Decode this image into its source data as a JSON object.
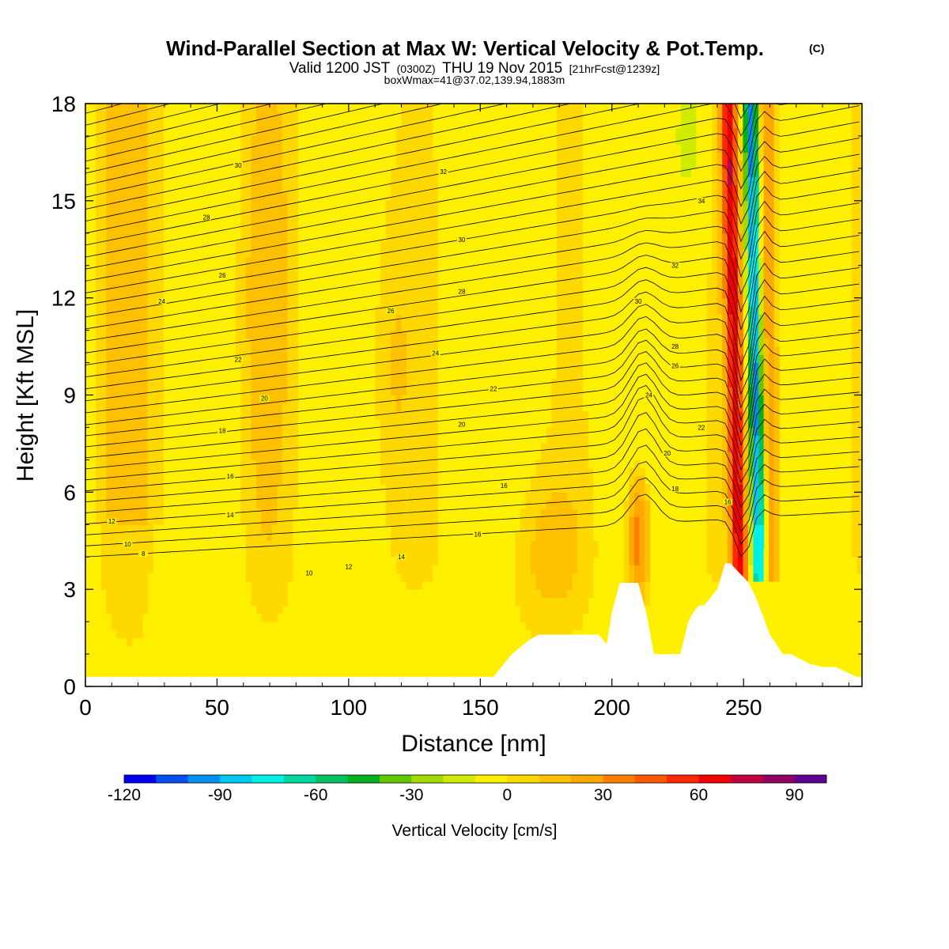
{
  "title": {
    "main": "Wind-Parallel Section at Max W: Vertical Velocity & Pot.Temp.",
    "copyright": "(C)",
    "valid_prefix": "Valid 1200 JST",
    "valid_utc": "(0300Z)",
    "valid_date": "THU 19 Nov 2015",
    "forecast": "[21hrFcst@1239z]",
    "box": "boxWmax=41@37.02,139.94,1883m"
  },
  "chart_data": {
    "type": "heatmap",
    "xlabel": "Distance [nm]",
    "ylabel": "Height [Kft MSL]",
    "xlim": [
      0,
      295
    ],
    "ylim": [
      0,
      18
    ],
    "xticks": [
      "0",
      "50",
      "100",
      "150",
      "200",
      "250"
    ],
    "yticks": [
      "0",
      "3",
      "6",
      "9",
      "12",
      "15",
      "18"
    ],
    "colorbar": {
      "label": "Vertical Velocity [cm/s]",
      "range": [
        -120,
        100
      ],
      "step": 10,
      "tick_labels": [
        "-120",
        "-90",
        "-60",
        "-30",
        "0",
        "30",
        "60",
        "90"
      ],
      "colors": [
        "#0000f0",
        "#0050f0",
        "#0090f0",
        "#00c8f0",
        "#00f0e8",
        "#00d8a0",
        "#00c060",
        "#00b020",
        "#60c800",
        "#a0dc00",
        "#d0ec00",
        "#fff000",
        "#ffd800",
        "#ffc000",
        "#ffa800",
        "#ff8000",
        "#ff5800",
        "#ff2800",
        "#f00000",
        "#c00040",
        "#900060",
        "#600090"
      ]
    },
    "background_w_cm_s": 0,
    "notable_features": [
      {
        "type": "downdraft",
        "x_nm": [
          252,
          258
        ],
        "height_kft": [
          4,
          18
        ],
        "min_w_cm_s": -90
      },
      {
        "type": "updraft",
        "x_nm": [
          245,
          252
        ],
        "height_kft": [
          4,
          18
        ],
        "max_w_cm_s": 60
      },
      {
        "type": "updraft",
        "x_nm": [
          206,
          215
        ],
        "height_kft": [
          2,
          6
        ],
        "max_w_cm_s": 35
      }
    ],
    "terrain_kft": {
      "x": [
        0,
        155,
        158,
        160,
        162,
        165,
        168,
        172,
        195,
        198,
        200,
        203,
        210,
        213,
        216,
        220,
        226,
        229,
        231,
        233,
        235,
        240,
        243,
        245,
        252,
        255,
        260,
        265,
        268,
        275,
        280,
        285,
        293,
        295
      ],
      "h": [
        0.3,
        0.3,
        0.6,
        0.8,
        1.0,
        1.2,
        1.4,
        1.6,
        1.6,
        1.3,
        2.3,
        3.2,
        3.2,
        2.3,
        1.0,
        1.0,
        1.0,
        2.0,
        2.3,
        2.5,
        2.5,
        3.0,
        3.8,
        3.8,
        3.2,
        2.7,
        1.6,
        1.0,
        1.0,
        0.7,
        0.6,
        0.6,
        0.3,
        0.3
      ]
    },
    "theta_contours": {
      "units": "degC",
      "levels": [
        8,
        10,
        12,
        14,
        16,
        18,
        20,
        22,
        24,
        26,
        28,
        30,
        32,
        34
      ],
      "labels": [
        {
          "text": "30",
          "x": 58,
          "y": 16.1
        },
        {
          "text": "32",
          "x": 136,
          "y": 15.9
        },
        {
          "text": "34",
          "x": 234,
          "y": 15.0
        },
        {
          "text": "28",
          "x": 46,
          "y": 14.5
        },
        {
          "text": "30",
          "x": 143,
          "y": 13.8
        },
        {
          "text": "32",
          "x": 224,
          "y": 13.0
        },
        {
          "text": "26",
          "x": 52,
          "y": 12.7
        },
        {
          "text": "28",
          "x": 143,
          "y": 12.2
        },
        {
          "text": "24",
          "x": 29,
          "y": 11.9
        },
        {
          "text": "26",
          "x": 116,
          "y": 11.6
        },
        {
          "text": "30",
          "x": 210,
          "y": 11.9
        },
        {
          "text": "24",
          "x": 133,
          "y": 10.3
        },
        {
          "text": "28",
          "x": 224,
          "y": 10.5
        },
        {
          "text": "22",
          "x": 58,
          "y": 10.1
        },
        {
          "text": "26",
          "x": 224,
          "y": 9.9
        },
        {
          "text": "22",
          "x": 155,
          "y": 9.2
        },
        {
          "text": "24",
          "x": 214,
          "y": 9.0
        },
        {
          "text": "20",
          "x": 68,
          "y": 8.9
        },
        {
          "text": "20",
          "x": 143,
          "y": 8.1
        },
        {
          "text": "22",
          "x": 234,
          "y": 8.0
        },
        {
          "text": "18",
          "x": 52,
          "y": 7.9
        },
        {
          "text": "20",
          "x": 221,
          "y": 7.2
        },
        {
          "text": "16",
          "x": 55,
          "y": 6.5
        },
        {
          "text": "16",
          "x": 159,
          "y": 6.2
        },
        {
          "text": "18",
          "x": 224,
          "y": 6.1
        },
        {
          "text": "16",
          "x": 244,
          "y": 5.7
        },
        {
          "text": "14",
          "x": 55,
          "y": 5.3
        },
        {
          "text": "12",
          "x": 10,
          "y": 5.1
        },
        {
          "text": "16",
          "x": 149,
          "y": 4.7
        },
        {
          "text": "10",
          "x": 16,
          "y": 4.4
        },
        {
          "text": "8",
          "x": 22,
          "y": 4.1
        },
        {
          "text": "14",
          "x": 120,
          "y": 4.0
        },
        {
          "text": "12",
          "x": 100,
          "y": 3.7
        },
        {
          "text": "10",
          "x": 85,
          "y": 3.5
        }
      ]
    }
  }
}
